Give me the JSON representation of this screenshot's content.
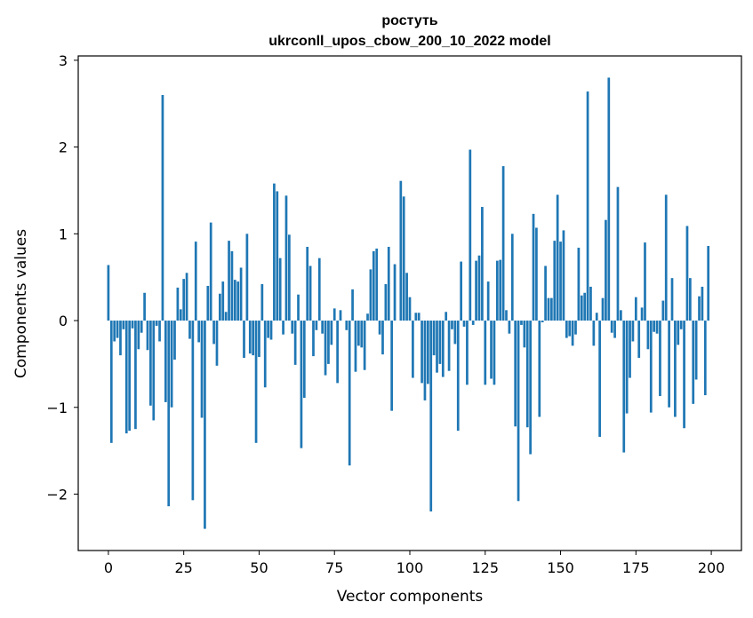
{
  "chart_data": {
    "type": "bar",
    "title": "ростуть",
    "subtitle": "ukrconll_upos_cbow_200_10_2022 model",
    "xlabel": "Vector components",
    "ylabel": "Components values",
    "xlim": [
      -10,
      210
    ],
    "ylim": [
      -2.65,
      3.05
    ],
    "xticks": [
      0,
      25,
      50,
      75,
      100,
      125,
      150,
      175,
      200
    ],
    "yticks": [
      -2,
      -1,
      0,
      1,
      2,
      3
    ],
    "xtick_labels": [
      "0",
      "25",
      "50",
      "75",
      "100",
      "125",
      "150",
      "175",
      "200"
    ],
    "ytick_labels": [
      "−2",
      "−1",
      "0",
      "1",
      "2",
      "3"
    ],
    "bar_color": "#1f77b4",
    "values": [
      0.64,
      -1.41,
      -0.24,
      -0.2,
      -0.4,
      -0.1,
      -1.3,
      -1.27,
      -0.09,
      -1.25,
      -0.33,
      -0.14,
      0.32,
      -0.34,
      -0.98,
      -1.15,
      -0.06,
      -0.24,
      2.6,
      -0.94,
      -2.14,
      -1.0,
      -0.45,
      0.38,
      0.13,
      0.48,
      0.55,
      -0.21,
      -2.07,
      0.91,
      -0.25,
      -1.12,
      -2.4,
      0.4,
      1.13,
      -0.27,
      -0.52,
      0.31,
      0.45,
      0.1,
      0.92,
      0.8,
      0.47,
      0.45,
      0.61,
      -0.43,
      1.0,
      -0.38,
      -0.4,
      -1.41,
      -0.42,
      0.42,
      -0.77,
      -0.2,
      -0.22,
      1.58,
      1.49,
      0.72,
      -0.16,
      1.44,
      0.99,
      -0.15,
      -0.51,
      0.3,
      -1.47,
      -0.89,
      0.85,
      0.63,
      -0.41,
      -0.11,
      0.72,
      -0.15,
      -0.63,
      -0.5,
      -0.28,
      0.14,
      -0.72,
      0.12,
      0.0,
      -0.11,
      -1.67,
      0.36,
      -0.59,
      -0.29,
      -0.31,
      -0.57,
      0.08,
      0.59,
      0.8,
      0.83,
      -0.16,
      -0.39,
      0.42,
      0.85,
      -1.04,
      0.65,
      0.0,
      1.61,
      1.43,
      0.55,
      0.27,
      -0.66,
      0.09,
      0.09,
      -0.72,
      -0.92,
      -0.73,
      -2.2,
      -0.4,
      -0.6,
      -0.5,
      -0.65,
      0.1,
      -0.58,
      -0.1,
      -0.27,
      -1.27,
      0.68,
      -0.07,
      -0.74,
      1.97,
      -0.05,
      0.69,
      0.75,
      1.31,
      -0.74,
      0.45,
      -0.67,
      -0.74,
      0.69,
      0.7,
      1.78,
      0.12,
      -0.15,
      1.0,
      -1.22,
      -2.08,
      -0.05,
      -0.31,
      -1.23,
      -1.54,
      1.23,
      1.07,
      -1.11,
      -0.02,
      0.63,
      0.26,
      0.26,
      0.92,
      1.45,
      0.91,
      1.04,
      -0.2,
      -0.18,
      -0.29,
      -0.16,
      0.84,
      0.29,
      0.32,
      2.64,
      0.39,
      -0.29,
      0.09,
      -1.34,
      0.26,
      1.16,
      2.8,
      -0.14,
      -0.2,
      1.54,
      0.12,
      -1.52,
      -1.07,
      -0.66,
      -0.24,
      0.27,
      -0.43,
      0.15,
      0.9,
      -0.33,
      -1.06,
      -0.13,
      -0.15,
      -0.87,
      0.23,
      1.45,
      -1.0,
      0.49,
      -1.11,
      -0.28,
      -0.1,
      -1.24,
      1.09,
      0.49,
      -0.96,
      -0.68,
      0.28,
      0.39,
      -0.86,
      0.86
    ]
  }
}
